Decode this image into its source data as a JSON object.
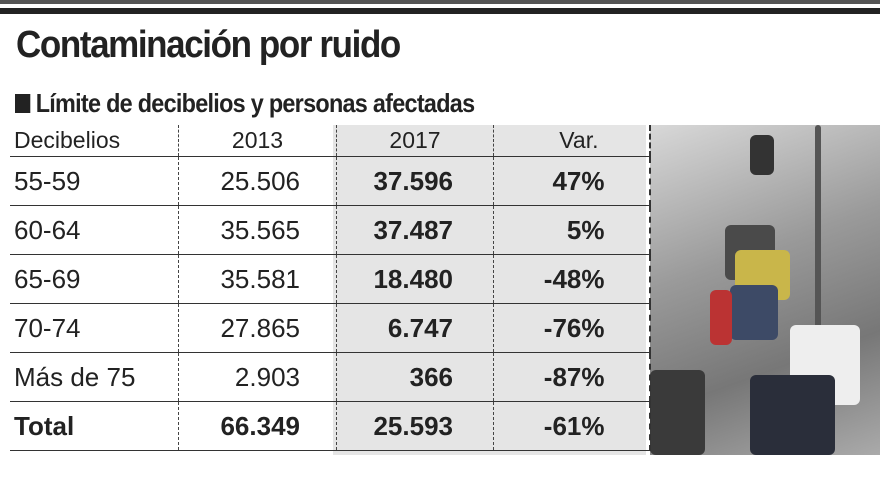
{
  "title": "Contaminación por ruido",
  "subtitle": "Límite de decibelios y personas afectadas",
  "chart_data": {
    "type": "table",
    "columns": [
      "Decibelios",
      "2013",
      "2017",
      "Var."
    ],
    "rows": [
      [
        "55-59",
        "25.506",
        "37.596",
        "47%"
      ],
      [
        "60-64",
        "35.565",
        "37.487",
        "5%"
      ],
      [
        "65-69",
        "35.581",
        "18.480",
        "-48%"
      ],
      [
        "70-74",
        "27.865",
        "6.747",
        "-76%"
      ],
      [
        "Más de 75",
        "2.903",
        "366",
        "-87%"
      ]
    ],
    "total": [
      "Total",
      "66.349",
      "25.593",
      "-61%"
    ]
  },
  "colors": {
    "text": "#222222",
    "shade": "#e5e5e5"
  }
}
